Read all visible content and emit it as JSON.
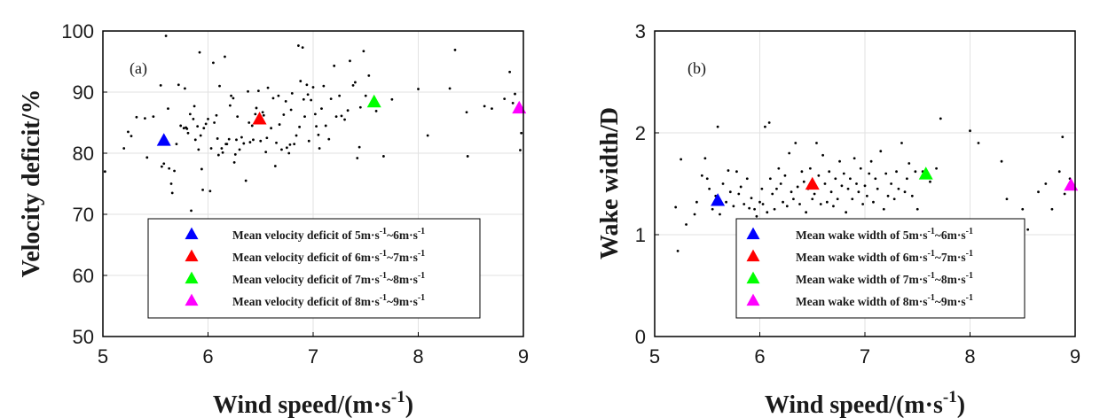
{
  "chart_data": [
    {
      "type": "scatter",
      "panel_label": "(a)",
      "xlabel": "Wind speed/(m·s",
      "xlabel_sup": "-1",
      "xlabel_tail": ")",
      "ylabel": "Velocity deficit/%",
      "xlim": [
        5,
        9
      ],
      "ylim": [
        50,
        100
      ],
      "xticks": [
        5,
        6,
        7,
        8,
        9
      ],
      "yticks": [
        50,
        60,
        70,
        80,
        90,
        100
      ],
      "grid": true,
      "legend_position": "bottom-right",
      "scatter_points": [
        [
          5.02,
          77
        ],
        [
          5.2,
          80.8
        ],
        [
          5.24,
          83.5
        ],
        [
          5.27,
          82.8
        ],
        [
          5.32,
          85.9
        ],
        [
          5.4,
          85.7
        ],
        [
          5.48,
          86
        ],
        [
          5.42,
          79.3
        ],
        [
          5.55,
          91.1
        ],
        [
          5.56,
          77.8
        ],
        [
          5.58,
          78.3
        ],
        [
          5.6,
          99.2
        ],
        [
          5.62,
          87.3
        ],
        [
          5.63,
          77.5
        ],
        [
          5.65,
          75
        ],
        [
          5.66,
          73.5
        ],
        [
          5.68,
          77.1
        ],
        [
          5.7,
          81.5
        ],
        [
          5.72,
          91.2
        ],
        [
          5.74,
          84.5
        ],
        [
          5.77,
          84.1
        ],
        [
          5.78,
          90.6
        ],
        [
          5.79,
          84.2
        ],
        [
          5.8,
          84
        ],
        [
          5.81,
          83.3
        ],
        [
          5.83,
          86.4
        ],
        [
          5.84,
          70.6
        ],
        [
          5.86,
          85.6
        ],
        [
          5.87,
          87.7
        ],
        [
          5.88,
          82.2
        ],
        [
          5.9,
          84.4
        ],
        [
          5.91,
          80.6
        ],
        [
          5.92,
          96.5
        ],
        [
          5.93,
          82.9
        ],
        [
          5.94,
          77.4
        ],
        [
          5.95,
          74
        ],
        [
          5.96,
          84.1
        ],
        [
          5.98,
          84.8
        ],
        [
          6,
          85.6
        ],
        [
          6.02,
          73.8
        ],
        [
          6.03,
          80.8
        ],
        [
          6.05,
          94.8
        ],
        [
          6.06,
          85
        ],
        [
          6.08,
          86.2
        ],
        [
          6.09,
          82.4
        ],
        [
          6.1,
          79.7
        ],
        [
          6.11,
          91
        ],
        [
          6.13,
          80.8
        ],
        [
          6.14,
          80.1
        ],
        [
          6.16,
          95.8
        ],
        [
          6.17,
          81.5
        ],
        [
          6.18,
          81.5
        ],
        [
          6.2,
          82.3
        ],
        [
          6.21,
          87.8
        ],
        [
          6.22,
          89.4
        ],
        [
          6.24,
          89
        ],
        [
          6.25,
          78.5
        ],
        [
          6.26,
          79.8
        ],
        [
          6.27,
          82.2
        ],
        [
          6.28,
          86
        ],
        [
          6.3,
          80.6
        ],
        [
          6.32,
          82.6
        ],
        [
          6.34,
          81.6
        ],
        [
          6.36,
          75.5
        ],
        [
          6.38,
          90.1
        ],
        [
          6.39,
          85
        ],
        [
          6.4,
          81.8
        ],
        [
          6.42,
          84.5
        ],
        [
          6.43,
          82.2
        ],
        [
          6.45,
          86.4
        ],
        [
          6.46,
          87.4
        ],
        [
          6.48,
          90.2
        ],
        [
          6.5,
          82
        ],
        [
          6.52,
          86.7
        ],
        [
          6.53,
          86.2
        ],
        [
          6.55,
          80.2
        ],
        [
          6.56,
          82.5
        ],
        [
          6.57,
          90.7
        ],
        [
          6.6,
          84.1
        ],
        [
          6.62,
          89
        ],
        [
          6.64,
          77.9
        ],
        [
          6.65,
          81.7
        ],
        [
          6.67,
          89.4
        ],
        [
          6.68,
          84.7
        ],
        [
          6.7,
          80.6
        ],
        [
          6.72,
          86.3
        ],
        [
          6.74,
          88.5
        ],
        [
          6.75,
          80.9
        ],
        [
          6.77,
          80
        ],
        [
          6.78,
          81.4
        ],
        [
          6.79,
          87.1
        ],
        [
          6.8,
          89.8
        ],
        [
          6.82,
          81.5
        ],
        [
          6.84,
          82.9
        ],
        [
          6.86,
          97.6
        ],
        [
          6.87,
          84.3
        ],
        [
          6.88,
          91.8
        ],
        [
          6.9,
          97.3
        ],
        [
          6.91,
          88.8
        ],
        [
          6.92,
          86
        ],
        [
          6.94,
          91.2
        ],
        [
          6.95,
          89.6
        ],
        [
          6.96,
          82
        ],
        [
          6.98,
          88.7
        ],
        [
          7,
          90.8
        ],
        [
          7.02,
          86.4
        ],
        [
          7.03,
          84.4
        ],
        [
          7.05,
          83
        ],
        [
          7.06,
          80.8
        ],
        [
          7.08,
          87.3
        ],
        [
          7.1,
          91
        ],
        [
          7.12,
          84.5
        ],
        [
          7.15,
          82.3
        ],
        [
          7.17,
          88.9
        ],
        [
          7.2,
          94.3
        ],
        [
          7.22,
          86
        ],
        [
          7.25,
          89.4
        ],
        [
          7.27,
          86.1
        ],
        [
          7.3,
          85.5
        ],
        [
          7.33,
          87
        ],
        [
          7.35,
          95.1
        ],
        [
          7.38,
          91.1
        ],
        [
          7.4,
          91.6
        ],
        [
          7.42,
          79.2
        ],
        [
          7.44,
          81
        ],
        [
          7.45,
          87.5
        ],
        [
          7.48,
          96.7
        ],
        [
          7.5,
          89.4
        ],
        [
          7.53,
          92.7
        ],
        [
          7.6,
          86.9
        ],
        [
          7.67,
          79.5
        ],
        [
          7.75,
          88.8
        ],
        [
          8,
          90.5
        ],
        [
          8.09,
          82.9
        ],
        [
          8.3,
          90.6
        ],
        [
          8.35,
          96.9
        ],
        [
          8.46,
          86.7
        ],
        [
          8.47,
          79.5
        ],
        [
          8.63,
          87.7
        ],
        [
          8.7,
          87.3
        ],
        [
          8.82,
          88.9
        ],
        [
          8.87,
          93.3
        ],
        [
          8.9,
          88.2
        ],
        [
          8.92,
          89.7
        ],
        [
          8.97,
          80.5
        ],
        [
          8.98,
          83.3
        ]
      ],
      "series": [
        {
          "name": "Mean velocity deficit of 5m·s-1~6m·s-1",
          "color": "#0000ff",
          "x": [
            5.58
          ],
          "y": [
            82.0
          ]
        },
        {
          "name": "Mean velocity deficit of 6m·s-1~7m·s-1",
          "color": "#ff0000",
          "x": [
            6.49
          ],
          "y": [
            85.5
          ]
        },
        {
          "name": "Mean velocity deficit of 7m·s-1~8m·s-1",
          "color": "#00ff00",
          "x": [
            7.58
          ],
          "y": [
            88.3
          ]
        },
        {
          "name": "Mean velocity deficit of 8m·s-1~9m·s-1",
          "color": "#ff00ff",
          "x": [
            8.96
          ],
          "y": [
            87.3
          ]
        }
      ],
      "legend_items": [
        {
          "pre": "Mean velocity deficit of 5m·s",
          "sup1": "-1",
          "mid": "~6m·s",
          "sup2": "-1",
          "color": "#0000ff"
        },
        {
          "pre": "Mean velocity deficit of 6m·s",
          "sup1": "-1",
          "mid": "~7m·s",
          "sup2": "-1",
          "color": "#ff0000"
        },
        {
          "pre": "Mean velocity deficit of 7m·s",
          "sup1": "-1",
          "mid": "~8m·s",
          "sup2": "-1",
          "color": "#00ff00"
        },
        {
          "pre": "Mean velocity deficit of 8m·s",
          "sup1": "-1",
          "mid": "~9m·s",
          "sup2": "-1",
          "color": "#ff00ff"
        }
      ]
    },
    {
      "type": "scatter",
      "panel_label": "(b)",
      "xlabel": "Wind speed/(m·s",
      "xlabel_sup": "-1",
      "xlabel_tail": ")",
      "ylabel": "Wake width/D",
      "xlim": [
        5,
        9
      ],
      "ylim": [
        0,
        3
      ],
      "xticks": [
        5,
        6,
        7,
        8,
        9
      ],
      "yticks": [
        0,
        1,
        2,
        3
      ],
      "grid": true,
      "legend_position": "bottom-right",
      "scatter_points": [
        [
          5.22,
          0.84
        ],
        [
          5.2,
          1.27
        ],
        [
          5.25,
          1.74
        ],
        [
          5.3,
          1.1
        ],
        [
          5.38,
          1.2
        ],
        [
          5.4,
          1.32
        ],
        [
          5.45,
          1.58
        ],
        [
          5.48,
          1.75
        ],
        [
          5.5,
          1.55
        ],
        [
          5.52,
          1.45
        ],
        [
          5.55,
          1.25
        ],
        [
          5.58,
          1.38
        ],
        [
          5.6,
          2.06
        ],
        [
          5.62,
          1.2
        ],
        [
          5.65,
          1.5
        ],
        [
          5.68,
          1.32
        ],
        [
          5.7,
          1.63
        ],
        [
          5.72,
          1.42
        ],
        [
          5.75,
          1.28
        ],
        [
          5.78,
          1.62
        ],
        [
          5.8,
          1.4
        ],
        [
          5.82,
          1.47
        ],
        [
          5.85,
          1.3
        ],
        [
          5.88,
          1.55
        ],
        [
          5.9,
          1.26
        ],
        [
          5.92,
          1.36
        ],
        [
          5.95,
          1.25
        ],
        [
          5.97,
          1.18
        ],
        [
          6,
          1.32
        ],
        [
          6.02,
          1.45
        ],
        [
          6.03,
          1.3
        ],
        [
          6.05,
          2.06
        ],
        [
          6.07,
          1.22
        ],
        [
          6.09,
          2.1
        ],
        [
          6.1,
          1.55
        ],
        [
          6.12,
          1.4
        ],
        [
          6.14,
          1.25
        ],
        [
          6.16,
          1.45
        ],
        [
          6.18,
          1.65
        ],
        [
          6.2,
          1.5
        ],
        [
          6.22,
          1.32
        ],
        [
          6.24,
          1.58
        ],
        [
          6.26,
          1.28
        ],
        [
          6.28,
          1.8
        ],
        [
          6.3,
          1.42
        ],
        [
          6.32,
          1.35
        ],
        [
          6.34,
          1.9
        ],
        [
          6.36,
          1.47
        ],
        [
          6.38,
          1.3
        ],
        [
          6.4,
          1.62
        ],
        [
          6.42,
          1.52
        ],
        [
          6.44,
          1.22
        ],
        [
          6.46,
          1.45
        ],
        [
          6.48,
          1.65
        ],
        [
          6.5,
          1.35
        ],
        [
          6.52,
          1.4
        ],
        [
          6.54,
          1.9
        ],
        [
          6.56,
          1.58
        ],
        [
          6.58,
          1.3
        ],
        [
          6.6,
          1.78
        ],
        [
          6.62,
          1.5
        ],
        [
          6.64,
          1.32
        ],
        [
          6.66,
          1.62
        ],
        [
          6.68,
          1.42
        ],
        [
          6.7,
          1.28
        ],
        [
          6.72,
          1.55
        ],
        [
          6.74,
          1.35
        ],
        [
          6.76,
          1.72
        ],
        [
          6.78,
          1.48
        ],
        [
          6.8,
          1.6
        ],
        [
          6.82,
          1.22
        ],
        [
          6.84,
          1.45
        ],
        [
          6.86,
          1.55
        ],
        [
          6.88,
          1.35
        ],
        [
          6.9,
          1.75
        ],
        [
          6.92,
          1.5
        ],
        [
          6.94,
          1.42
        ],
        [
          6.96,
          1.65
        ],
        [
          6.98,
          1.3
        ],
        [
          7,
          1.48
        ],
        [
          7.02,
          1.38
        ],
        [
          7.04,
          1.6
        ],
        [
          7.06,
          1.72
        ],
        [
          7.08,
          1.32
        ],
        [
          7.1,
          1.55
        ],
        [
          7.12,
          1.45
        ],
        [
          7.15,
          1.82
        ],
        [
          7.18,
          1.25
        ],
        [
          7.2,
          1.6
        ],
        [
          7.22,
          1.38
        ],
        [
          7.25,
          1.5
        ],
        [
          7.28,
          1.35
        ],
        [
          7.3,
          1.62
        ],
        [
          7.32,
          1.45
        ],
        [
          7.35,
          1.9
        ],
        [
          7.38,
          1.42
        ],
        [
          7.4,
          1.55
        ],
        [
          7.42,
          1.7
        ],
        [
          7.45,
          1.38
        ],
        [
          7.48,
          1.62
        ],
        [
          7.5,
          1.25
        ],
        [
          7.55,
          1.62
        ],
        [
          7.62,
          1.52
        ],
        [
          7.68,
          1.65
        ],
        [
          7.72,
          2.14
        ],
        [
          8,
          2.02
        ],
        [
          8.08,
          1.9
        ],
        [
          8.3,
          1.72
        ],
        [
          8.35,
          1.35
        ],
        [
          8.5,
          1.25
        ],
        [
          8.55,
          1.05
        ],
        [
          8.65,
          1.42
        ],
        [
          8.72,
          1.5
        ],
        [
          8.78,
          1.25
        ],
        [
          8.85,
          1.62
        ],
        [
          8.88,
          1.96
        ],
        [
          8.9,
          1.4
        ],
        [
          8.95,
          1.55
        ]
      ],
      "series": [
        {
          "name": "Mean wake width of 5m·s-1~6m·s-1",
          "color": "#0000ff",
          "x": [
            5.6
          ],
          "y": [
            1.33
          ]
        },
        {
          "name": "Mean wake width of 6m·s-1~7m·s-1",
          "color": "#ff0000",
          "x": [
            6.5
          ],
          "y": [
            1.49
          ]
        },
        {
          "name": "Mean wake width of 7m·s-1~8m·s-1",
          "color": "#00ff00",
          "x": [
            7.58
          ],
          "y": [
            1.59
          ]
        },
        {
          "name": "Mean wake width of 8m·s-1~9m·s-1",
          "color": "#ff00ff",
          "x": [
            8.96
          ],
          "y": [
            1.48
          ]
        }
      ],
      "legend_items": [
        {
          "pre": "Mean wake width of 5m·s",
          "sup1": "-1",
          "mid": "~6m·s",
          "sup2": "-1",
          "color": "#0000ff"
        },
        {
          "pre": "Mean wake width of 6m·s",
          "sup1": "-1",
          "mid": "~7m·s",
          "sup2": "-1",
          "color": "#ff0000"
        },
        {
          "pre": "Mean wake width of 7m·s",
          "sup1": "-1",
          "mid": "~8m·s",
          "sup2": "-1",
          "color": "#00ff00"
        },
        {
          "pre": "Mean wake width of 8m·s",
          "sup1": "-1",
          "mid": "~9m·s",
          "sup2": "-1",
          "color": "#ff00ff"
        }
      ]
    }
  ]
}
